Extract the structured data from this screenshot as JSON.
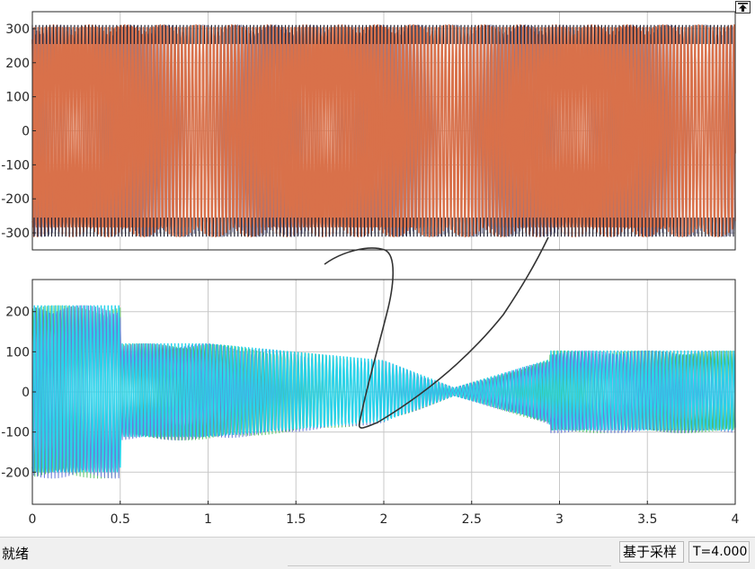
{
  "status_bar": {
    "state_text": "就绪",
    "sample_mode": "基于采样",
    "sim_time": "T=4.000"
  },
  "toolbar": {
    "restore_icon": "pin-up-arrow-icon"
  },
  "colors": {
    "top_trace_primary": "#d9714a",
    "top_trace_secondary": "#7a7aa0",
    "top_trace_dark": "#222233",
    "bottom_trace_primary": "#29d3ea",
    "bottom_trace_secondary": "#6a7ad8",
    "bottom_trace_tertiary": "#4ac060",
    "grid": "#c8c8c8",
    "annotation": "#333333"
  },
  "chart_data": [
    {
      "type": "line",
      "title": "",
      "xlabel": "",
      "ylabel": "",
      "xlim": [
        0,
        4
      ],
      "ylim": [
        -350,
        350
      ],
      "yticks": [
        300,
        200,
        100,
        0,
        -100,
        -200,
        -300
      ],
      "ytick_labels": [
        "300",
        "200",
        "100",
        "0",
        "-100",
        "-200",
        "-300"
      ],
      "grid": true,
      "series": [
        {
          "envelope": [
            [
              0,
              311
            ],
            [
              4,
              311
            ]
          ]
        }
      ]
    },
    {
      "type": "line",
      "title": "",
      "xlabel": "",
      "ylabel": "",
      "xlim": [
        0,
        4
      ],
      "ylim": [
        -280,
        280
      ],
      "xticks": [
        0,
        0.5,
        1,
        1.5,
        2,
        2.5,
        3,
        3.5,
        4
      ],
      "xtick_labels": [
        "0",
        "0.5",
        "1",
        "1.5",
        "2",
        "2.5",
        "3",
        "3.5",
        "4"
      ],
      "yticks": [
        200,
        100,
        0,
        -100,
        -200
      ],
      "ytick_labels": [
        "200",
        "100",
        "0",
        "-100",
        "-200"
      ],
      "grid": true,
      "series": [
        {
          "envelope": [
            [
              0,
              215
            ],
            [
              0.5,
              215
            ],
            [
              0.5,
              120
            ],
            [
              1.0,
              120
            ],
            [
              2.0,
              78
            ],
            [
              2.4,
              10
            ],
            [
              2.94,
              80
            ],
            [
              2.95,
              102
            ],
            [
              4,
              102
            ]
          ]
        }
      ]
    }
  ]
}
